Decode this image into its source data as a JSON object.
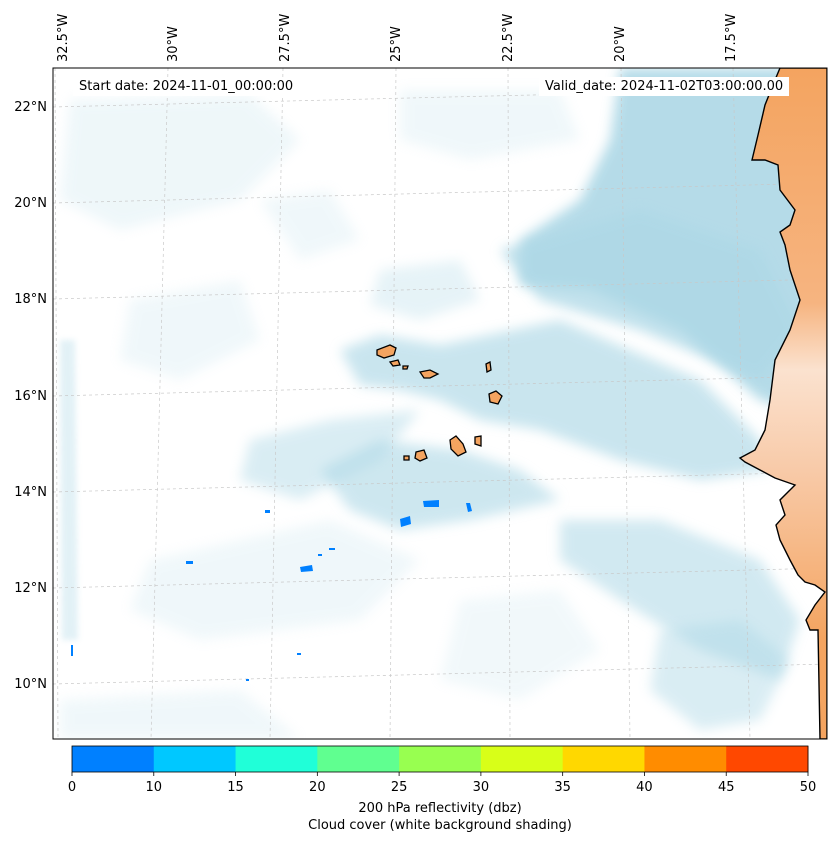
{
  "map": {
    "lon_ticks": [
      "32.5°W",
      "30°W",
      "27.5°W",
      "25°W",
      "22.5°W",
      "20°W",
      "17.5°W"
    ],
    "lat_ticks": [
      "22°N",
      "20°N",
      "18°N",
      "16°N",
      "14°N",
      "12°N",
      "10°N"
    ],
    "start_label": "Start date: 2024-11-01_00:00:00",
    "valid_label": "Valid_date: 2024-11-02T03:00:00.00",
    "land_color": "#f4a460",
    "cloud_color": "#add8e6",
    "grid_on": true
  },
  "colorbar": {
    "ticks": [
      "0",
      "10",
      "15",
      "20",
      "25",
      "30",
      "35",
      "40",
      "45",
      "50"
    ],
    "colors": [
      "#0080ff",
      "#00c8ff",
      "#20ffd8",
      "#60ff90",
      "#98ff50",
      "#d8ff18",
      "#ffd800",
      "#ff8c00",
      "#ff4800"
    ],
    "label": "200 hPa reflectivity (dbz)",
    "sublabel": "Cloud cover (white background shading)"
  }
}
